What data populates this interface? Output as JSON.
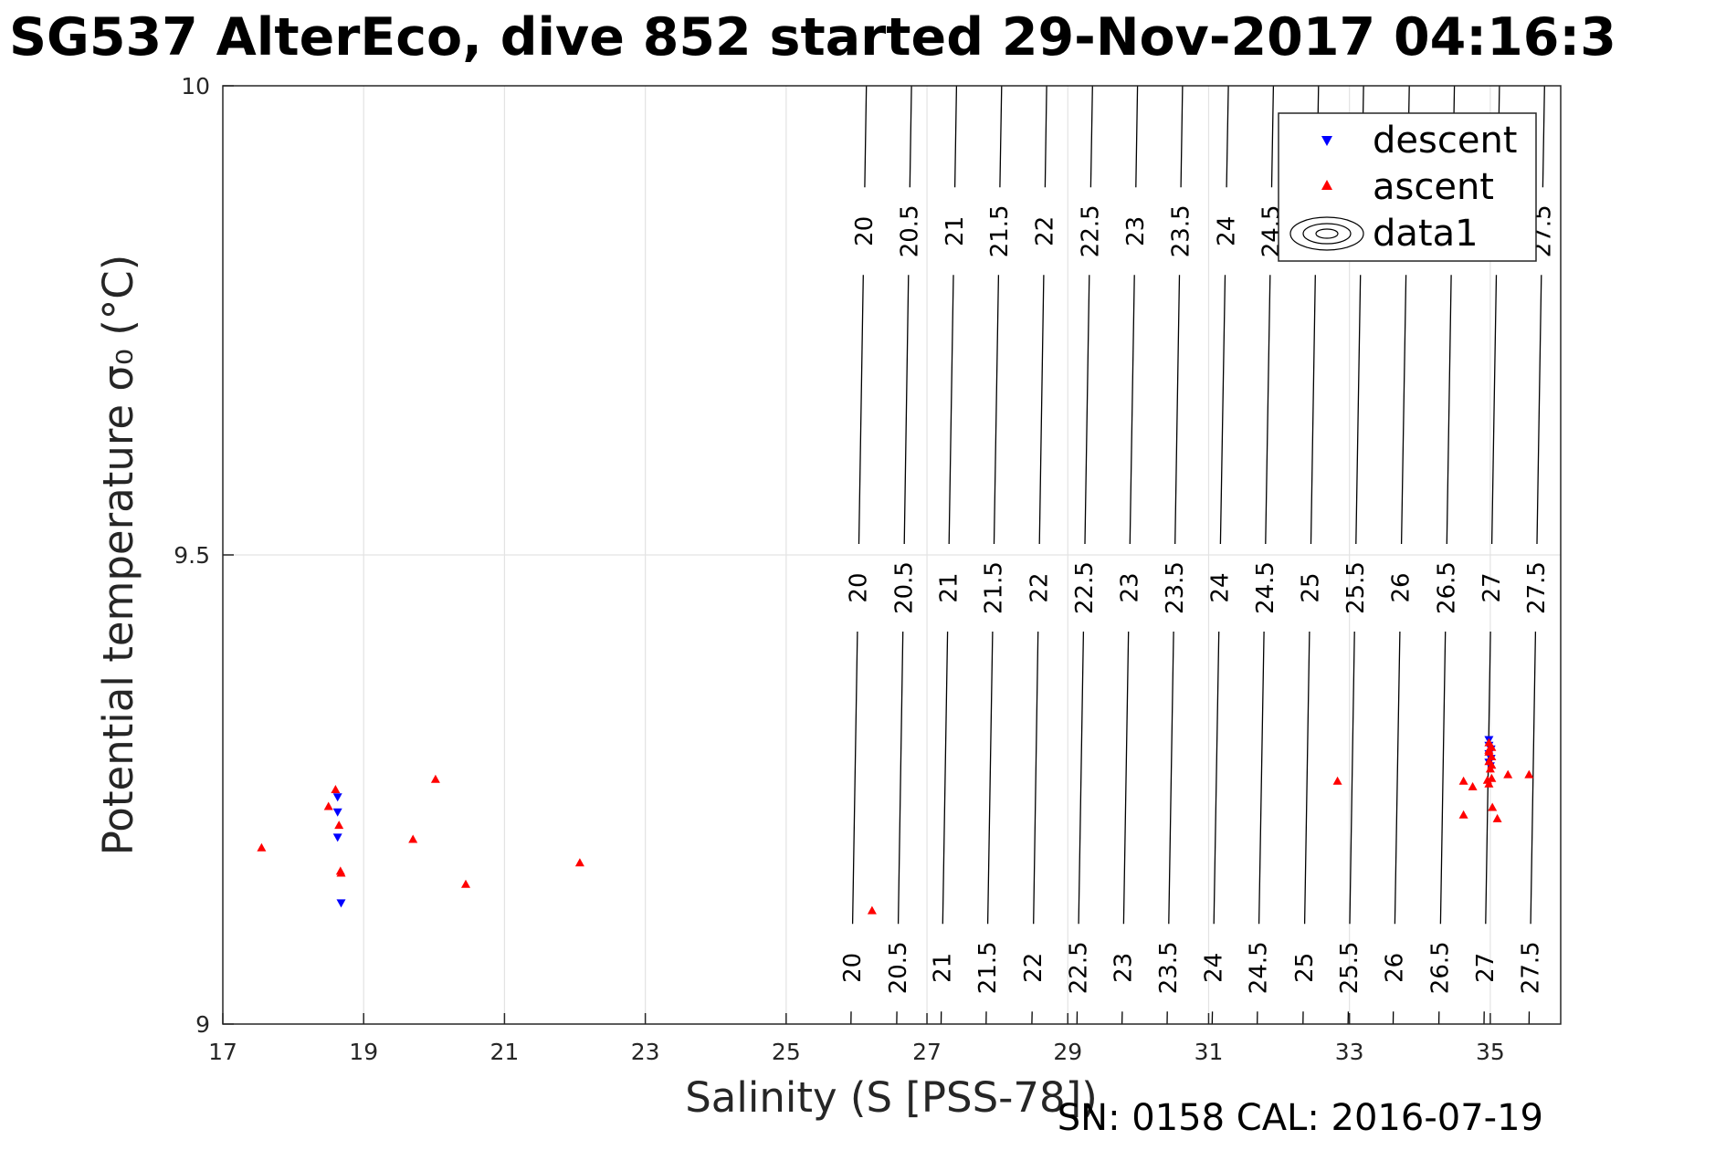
{
  "chart_data": {
    "type": "scatter",
    "title": "SG537 AlterEco, dive 852 started 29-Nov-2017 04:16:3",
    "xlabel": "Salinity (S [PSS-78])",
    "ylabel": "Potential temperature σ₀ (°C)",
    "footer": "SN: 0158  CAL: 2016-07-19",
    "xlim": [
      17,
      36
    ],
    "ylim": [
      9,
      10
    ],
    "x_ticks": [
      17,
      19,
      21,
      23,
      25,
      27,
      29,
      31,
      33,
      35
    ],
    "y_ticks": [
      9,
      9.5,
      10
    ],
    "x_tick_labels": [
      "17",
      "19",
      "21",
      "23",
      "25",
      "27",
      "29",
      "31",
      "33",
      "35"
    ],
    "y_tick_labels": [
      "9",
      "9.5",
      "10"
    ],
    "grid": true,
    "legend_position": "top-right",
    "series": [
      {
        "name": "descent",
        "marker": "triangle-down",
        "color": "#0000ff",
        "points": [
          [
            18.63,
            9.242
          ],
          [
            18.63,
            9.226
          ],
          [
            18.63,
            9.199
          ],
          [
            18.68,
            9.129
          ],
          [
            34.98,
            9.303
          ],
          [
            34.98,
            9.297
          ],
          [
            35.01,
            9.293
          ],
          [
            34.98,
            9.288
          ],
          [
            35.01,
            9.283
          ],
          [
            34.98,
            9.279
          ],
          [
            35.0,
            9.275
          ]
        ]
      },
      {
        "name": "ascent",
        "marker": "triangle-up",
        "color": "#ff0000",
        "points": [
          [
            17.55,
            9.188
          ],
          [
            18.5,
            9.232
          ],
          [
            18.6,
            9.25
          ],
          [
            18.65,
            9.212
          ],
          [
            18.67,
            9.163
          ],
          [
            18.68,
            9.161
          ],
          [
            19.7,
            9.197
          ],
          [
            20.02,
            9.261
          ],
          [
            20.45,
            9.149
          ],
          [
            22.07,
            9.172
          ],
          [
            26.22,
            9.121
          ],
          [
            32.83,
            9.259
          ],
          [
            34.62,
            9.259
          ],
          [
            34.75,
            9.253
          ],
          [
            34.62,
            9.223
          ],
          [
            34.96,
            9.26
          ],
          [
            35.02,
            9.262
          ],
          [
            34.98,
            9.256
          ],
          [
            35.03,
            9.231
          ],
          [
            35.1,
            9.219
          ],
          [
            35.25,
            9.266
          ],
          [
            35.55,
            9.266
          ],
          [
            34.98,
            9.3
          ],
          [
            35.02,
            9.295
          ],
          [
            34.98,
            9.29
          ],
          [
            35.02,
            9.285
          ],
          [
            34.98,
            9.28
          ],
          [
            35.02,
            9.276
          ],
          [
            34.98,
            9.292
          ],
          [
            35.0,
            9.272
          ]
        ]
      }
    ],
    "contour_series_name": "data1",
    "contour_levels": [
      20,
      20.5,
      21,
      21.5,
      22,
      22.5,
      23,
      23.5,
      24,
      24.5,
      25,
      25.5,
      26,
      26.5,
      27,
      27.5
    ],
    "contour_level_labels": [
      "20",
      "20.5",
      "21",
      "21.5",
      "22",
      "22.5",
      "23",
      "23.5",
      "24",
      "24.5",
      "25",
      "25.5",
      "26",
      "26.5",
      "27",
      "27.5"
    ],
    "contour_lines": [
      {
        "level": "20",
        "s_at_9": 25.92,
        "s_at_10": 26.14
      },
      {
        "level": "20.5",
        "s_at_9": 26.57,
        "s_at_10": 26.78
      },
      {
        "level": "21",
        "s_at_9": 27.2,
        "s_at_10": 27.42
      },
      {
        "level": "21.5",
        "s_at_9": 27.84,
        "s_at_10": 28.06
      },
      {
        "level": "22",
        "s_at_9": 28.49,
        "s_at_10": 28.7
      },
      {
        "level": "22.5",
        "s_at_9": 29.13,
        "s_at_10": 29.35
      },
      {
        "level": "23",
        "s_at_9": 29.77,
        "s_at_10": 29.99
      },
      {
        "level": "23.5",
        "s_at_9": 30.41,
        "s_at_10": 30.63
      },
      {
        "level": "24",
        "s_at_9": 31.05,
        "s_at_10": 31.28
      },
      {
        "level": "24.5",
        "s_at_9": 31.69,
        "s_at_10": 31.92
      },
      {
        "level": "25",
        "s_at_9": 32.34,
        "s_at_10": 32.56
      },
      {
        "level": "25.5",
        "s_at_9": 32.98,
        "s_at_10": 33.2
      },
      {
        "level": "26",
        "s_at_9": 33.62,
        "s_at_10": 33.85
      },
      {
        "level": "26.5",
        "s_at_9": 34.27,
        "s_at_10": 34.49
      },
      {
        "level": "27",
        "s_at_9": 34.91,
        "s_at_10": 35.13
      },
      {
        "level": "27.5",
        "s_at_9": 35.55,
        "s_at_10": 35.77
      }
    ],
    "contour_label_rows_temp": [
      9.06,
      9.465,
      9.845
    ]
  }
}
